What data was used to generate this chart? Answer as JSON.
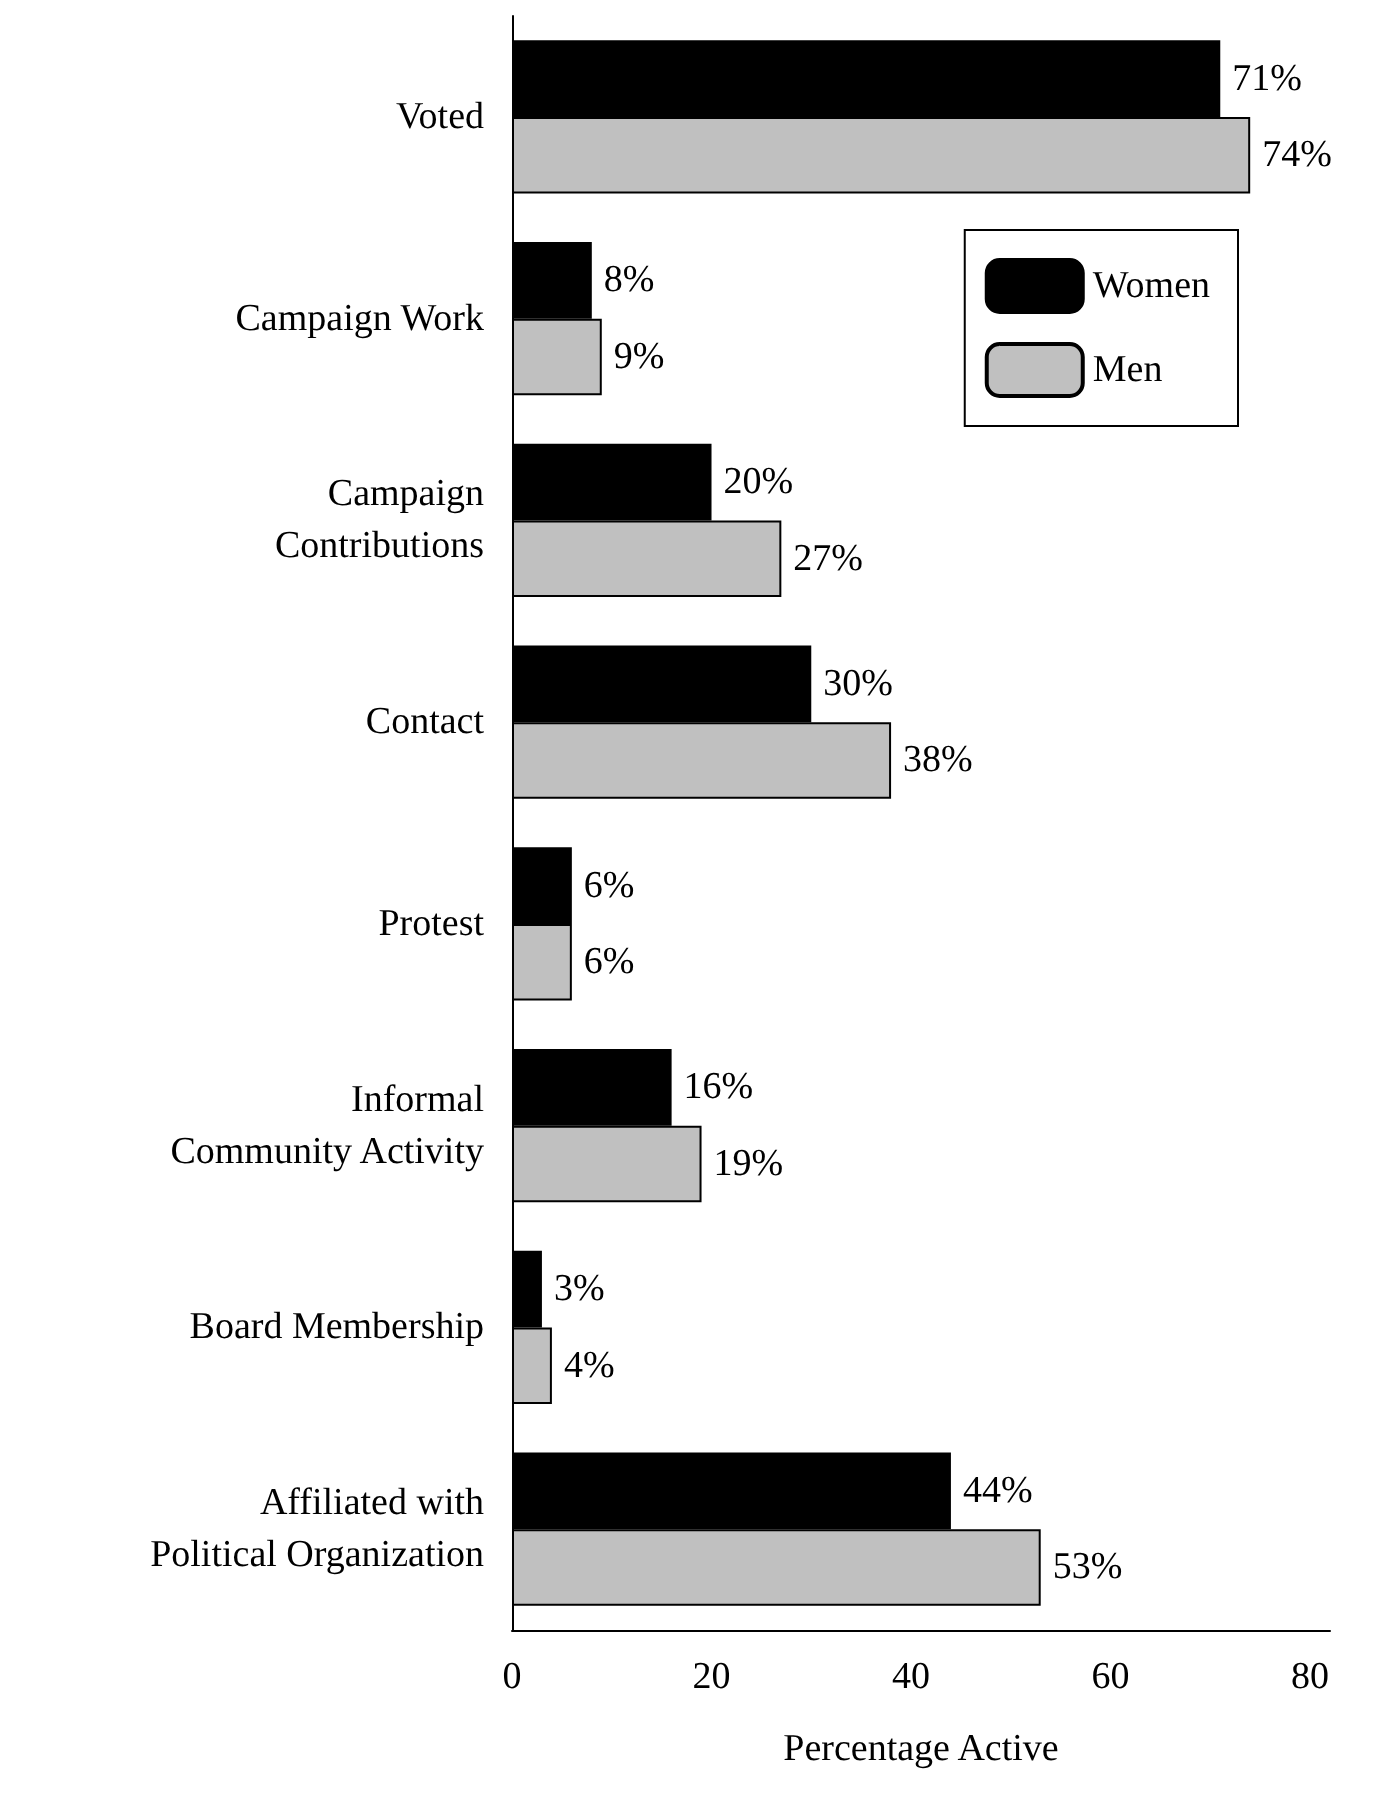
{
  "chart_data": {
    "type": "bar",
    "orientation": "horizontal",
    "xlabel": "Percentage Active",
    "categories": [
      "Voted",
      "Campaign Work",
      "Campaign\nContributions",
      "Contact",
      "Protest",
      "Informal\nCommunity Activity",
      "Board Membership",
      "Affiliated with\nPolitical Organization"
    ],
    "series": [
      {
        "name": "Women",
        "color": "#000000",
        "values": [
          71,
          8,
          20,
          30,
          6,
          16,
          3,
          44
        ],
        "value_labels": [
          "71%",
          "8%",
          "20%",
          "30%",
          "6%",
          "16%",
          "3%",
          "44%"
        ]
      },
      {
        "name": "Men",
        "color": "#c0c0c0",
        "values": [
          74,
          9,
          27,
          38,
          6,
          19,
          4,
          53
        ],
        "value_labels": [
          "74%",
          "9%",
          "27%",
          "38%",
          "6%",
          "19%",
          "4%",
          "53%"
        ]
      }
    ],
    "xlim": [
      0,
      82
    ],
    "xticks": [
      0,
      20,
      40,
      60,
      80
    ],
    "grid": false,
    "legend": "top right"
  }
}
